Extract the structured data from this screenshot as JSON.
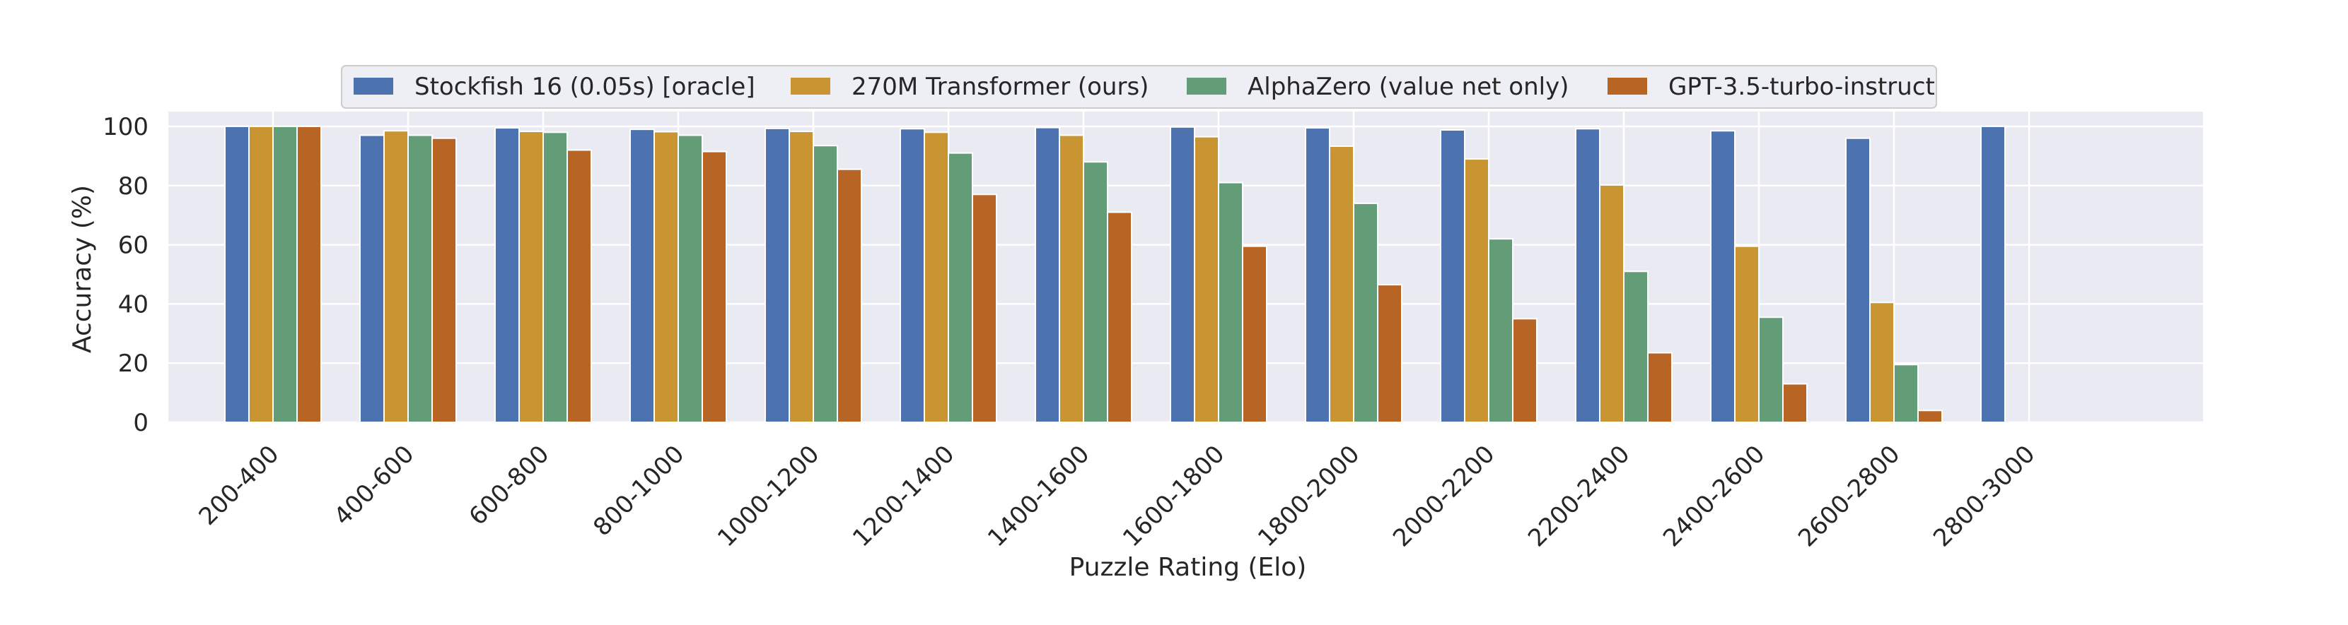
{
  "chart_data": {
    "type": "bar",
    "title": "",
    "xlabel": "Puzzle Rating (Elo)",
    "ylabel": "Accuracy (%)",
    "ylim": [
      0,
      105
    ],
    "yticks": [
      0,
      20,
      40,
      60,
      80,
      100
    ],
    "grid": true,
    "legend_position": "top-center",
    "categories": [
      "200-400",
      "400-600",
      "600-800",
      "800-1000",
      "1000-1200",
      "1200-1400",
      "1400-1600",
      "1600-1800",
      "1800-2000",
      "2000-2200",
      "2200-2400",
      "2400-2600",
      "2600-2800",
      "2800-3000"
    ],
    "series": [
      {
        "name": "Stockfish 16 (0.05s) [oracle]",
        "color": "#4c72b0",
        "values": [
          100,
          97,
          99.5,
          99,
          99.3,
          99.2,
          99.6,
          99.8,
          99.5,
          98.8,
          99.2,
          98.5,
          96,
          100
        ]
      },
      {
        "name": "270M Transformer (ours)",
        "color": "#c99432",
        "values": [
          100,
          98.5,
          98.3,
          98.2,
          98.3,
          98,
          97,
          96.5,
          93.3,
          89,
          80.2,
          59.5,
          40.5,
          null
        ]
      },
      {
        "name": "AlphaZero (value net only)",
        "color": "#629d77",
        "values": [
          100,
          97,
          98,
          97,
          93.5,
          91,
          88,
          81,
          74,
          62,
          51,
          35.5,
          19.5,
          null
        ]
      },
      {
        "name": "GPT-3.5-turbo-instruct",
        "color": "#b86424",
        "values": [
          100,
          96,
          92,
          91.5,
          85.5,
          77,
          71,
          59.5,
          46.5,
          35,
          23.5,
          13,
          4,
          null
        ]
      }
    ]
  }
}
